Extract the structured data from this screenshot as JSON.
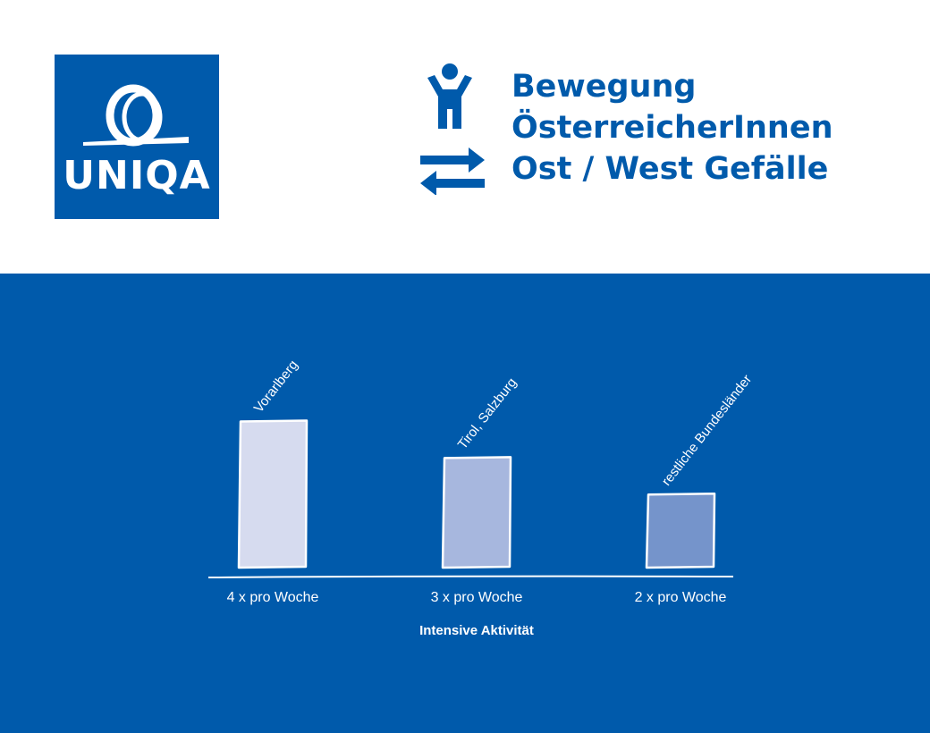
{
  "logo": {
    "text": "UNIQA"
  },
  "icons": {
    "person": "person-icon",
    "arrows": "swap-arrows-icon"
  },
  "title_lines": [
    "Bewegung",
    "ÖsterreicherInnen",
    "Ost / West Gefälle"
  ],
  "colors": {
    "brand_blue": "#005aab",
    "white": "#ffffff",
    "bar_light": "#d6dbef",
    "bar_mid": "#a7b7de",
    "bar_dark": "#7594cb"
  },
  "chart_data": {
    "type": "bar",
    "categories": [
      "4 x pro Woche",
      "3 x pro Woche",
      "2 x pro Woche"
    ],
    "bar_labels": [
      "Vorarlberg",
      "Tirol, Salzburg",
      "restliche Bundesländer"
    ],
    "values": [
      4,
      3,
      2
    ],
    "title": "",
    "xlabel": "Intensive Aktivität",
    "ylabel": "",
    "ylim": [
      0,
      4.6
    ],
    "grid": false,
    "legend": "none"
  }
}
